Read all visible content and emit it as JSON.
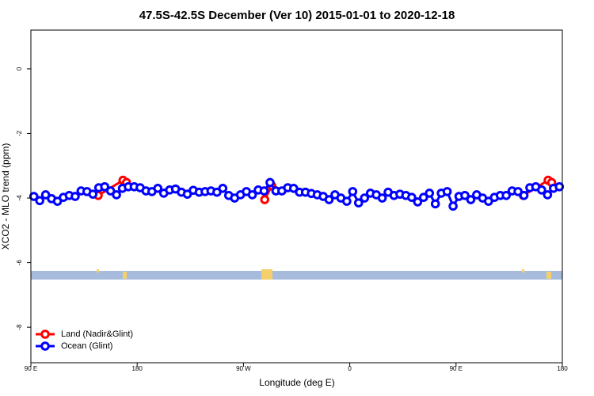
{
  "chart_data": {
    "type": "line",
    "title": "47.5S-42.5S December (Ver 10)   2015-01-01 to 2020-12-18",
    "x_label": "Longitude (deg E)",
    "y_label": "XCO2 - MLO trend (ppm)",
    "xlim": [
      90,
      540
    ],
    "ylim": [
      -9.1,
      1.2
    ],
    "xticks": [
      {
        "value": 90,
        "label": "90 E"
      },
      180,
      {
        "value": 270,
        "label": "90 W"
      },
      {
        "value": 360,
        "label": "0"
      },
      {
        "value": 450,
        "label": "90 E"
      },
      {
        "value": 540,
        "label": "180"
      }
    ],
    "yticks": [
      0,
      -2,
      -4,
      -6,
      -8
    ],
    "legend": "bottom-left",
    "series": [
      {
        "name": "Land (Nadir&Glint)",
        "color": "#ff0000",
        "x": [
          147,
          168,
          171,
          null,
          288,
          294,
          null,
          507,
          528,
          531
        ],
        "values": [
          -3.92,
          -3.45,
          -3.52,
          null,
          -4.05,
          -3.62,
          null,
          -3.92,
          -3.45,
          -3.52
        ]
      },
      {
        "name": "Ocean (Glint)",
        "color": "#0000ff",
        "x": [
          92.5,
          97.5,
          102.5,
          107.5,
          112.5,
          117.5,
          122.5,
          127.5,
          132.5,
          137.5,
          142.5,
          147.5,
          152.5,
          157.5,
          162.5,
          167.5,
          172.5,
          177.5,
          182.5,
          187.5,
          192.5,
          197.5,
          202.5,
          207.5,
          212.5,
          217.5,
          222.5,
          227.5,
          232.5,
          237.5,
          242.5,
          247.5,
          252.5,
          257.5,
          262.5,
          267.5,
          272.5,
          277.5,
          282.5,
          287.5,
          292.5,
          297.5,
          302.5,
          307.5,
          312.5,
          317.5,
          322.5,
          327.5,
          332.5,
          337.5,
          342.5,
          347.5,
          352.5,
          357.5,
          362.5,
          367.5,
          372.5,
          377.5,
          382.5,
          387.5,
          392.5,
          397.5,
          402.5,
          407.5,
          412.5,
          417.5,
          422.5,
          427.5,
          432.5,
          437.5,
          442.5,
          447.5,
          452.5,
          457.5,
          462.5,
          467.5,
          472.5,
          477.5,
          482.5,
          487.5,
          492.5,
          497.5,
          502.5,
          507.5,
          512.5,
          517.5,
          522.5,
          527.5,
          532.5,
          537.5
        ],
        "values": [
          -3.95,
          -4.08,
          -3.9,
          -4.02,
          -4.1,
          -3.98,
          -3.92,
          -3.95,
          -3.78,
          -3.8,
          -3.88,
          -3.68,
          -3.65,
          -3.78,
          -3.9,
          -3.7,
          -3.65,
          -3.65,
          -3.68,
          -3.78,
          -3.8,
          -3.7,
          -3.85,
          -3.75,
          -3.72,
          -3.82,
          -3.88,
          -3.76,
          -3.82,
          -3.8,
          -3.78,
          -3.82,
          -3.7,
          -3.92,
          -4.0,
          -3.9,
          -3.8,
          -3.9,
          -3.75,
          -3.78,
          -3.52,
          -3.78,
          -3.78,
          -3.68,
          -3.7,
          -3.82,
          -3.82,
          -3.86,
          -3.9,
          -3.95,
          -4.05,
          -3.9,
          -4.0,
          -4.1,
          -3.8,
          -4.15,
          -4.0,
          -3.85,
          -3.9,
          -4.0,
          -3.82,
          -3.92,
          -3.88,
          -3.92,
          -3.98,
          -4.12,
          -3.98,
          -3.85,
          -4.18,
          -3.85,
          -3.8,
          -4.25,
          -3.95,
          -3.92,
          -4.05,
          -3.9,
          -4.0,
          -4.1,
          -3.98,
          -3.92,
          -3.92,
          -3.78,
          -3.8,
          -3.92,
          -3.68,
          -3.65,
          -3.75,
          -3.9,
          -3.7,
          -3.65
        ]
      }
    ]
  }
}
